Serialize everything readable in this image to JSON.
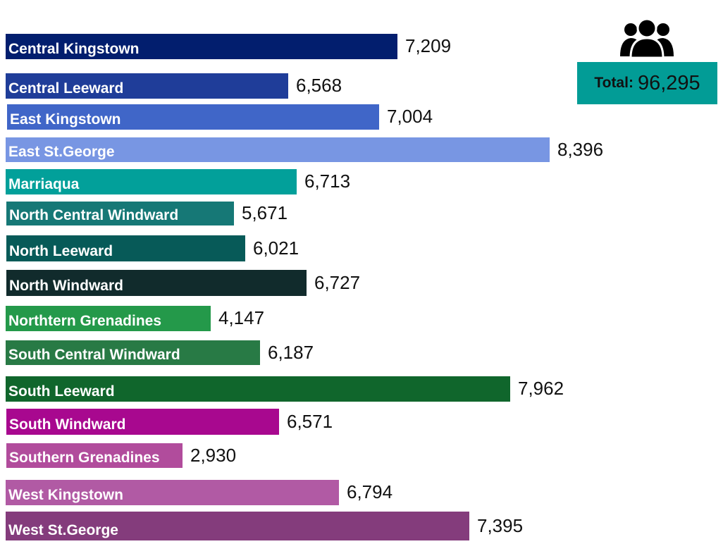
{
  "summary": {
    "total_label": "Total:",
    "total_value": "96,295",
    "icon": "people-group-icon",
    "box_color": "#029c96"
  },
  "bars": [
    {
      "label": "Central Kingstown",
      "value": "7,209",
      "color": "#021e6e"
    },
    {
      "label": "Central Leeward",
      "value": "6,568",
      "color": "#1f3d99"
    },
    {
      "label": "East Kingstown",
      "value": "7,004",
      "color": "#4066c8"
    },
    {
      "label": "East St.George",
      "value": "8,396",
      "color": "#7896e3"
    },
    {
      "label": "Marriaqua",
      "value": "6,713",
      "color": "#02a09a"
    },
    {
      "label": "North Central Windward",
      "value": "5,671",
      "color": "#167876"
    },
    {
      "label": "North Leeward",
      "value": "6,021",
      "color": "#075a58"
    },
    {
      "label": "North Windward",
      "value": "6,727",
      "color": "#112b2c"
    },
    {
      "label": "Northern Grenadines",
      "value": "4,147",
      "color": "#24994a"
    },
    {
      "label": "South Central Windward",
      "value": "6,187",
      "color": "#287a45"
    },
    {
      "label": "South Leeward",
      "value": "7,962",
      "color": "#10662c"
    },
    {
      "label": "South Windward",
      "value": "6,571",
      "color": "#a8088f"
    },
    {
      "label": "Southern Grenadines",
      "value": "2,930",
      "color": "#b14c9c"
    },
    {
      "label": "West Kingstown",
      "value": "6,794",
      "color": "#b15aa4"
    },
    {
      "label": "West St.George",
      "value": "7,395",
      "color": "#843c7c"
    }
  ],
  "bars_display_labels": {
    "8": "Northtern Grenadines"
  },
  "chart_data": {
    "type": "bar",
    "orientation": "horizontal",
    "title": "",
    "xlabel": "",
    "ylabel": "",
    "categories": [
      "Central Kingstown",
      "Central Leeward",
      "East Kingstown",
      "East St.George",
      "Marriaqua",
      "North Central Windward",
      "North Leeward",
      "North Windward",
      "Northtern Grenadines",
      "South Central Windward",
      "South Leeward",
      "South Windward",
      "Southern Grenadines",
      "West Kingstown",
      "West St.George"
    ],
    "values": [
      7209,
      6568,
      7004,
      8396,
      6713,
      5671,
      6021,
      6727,
      4147,
      6187,
      7962,
      6571,
      2930,
      6794,
      7395
    ],
    "total": 96295,
    "annotations": [
      "Total: 96,295"
    ],
    "grid": false,
    "legend": "none",
    "data_labels": true
  }
}
